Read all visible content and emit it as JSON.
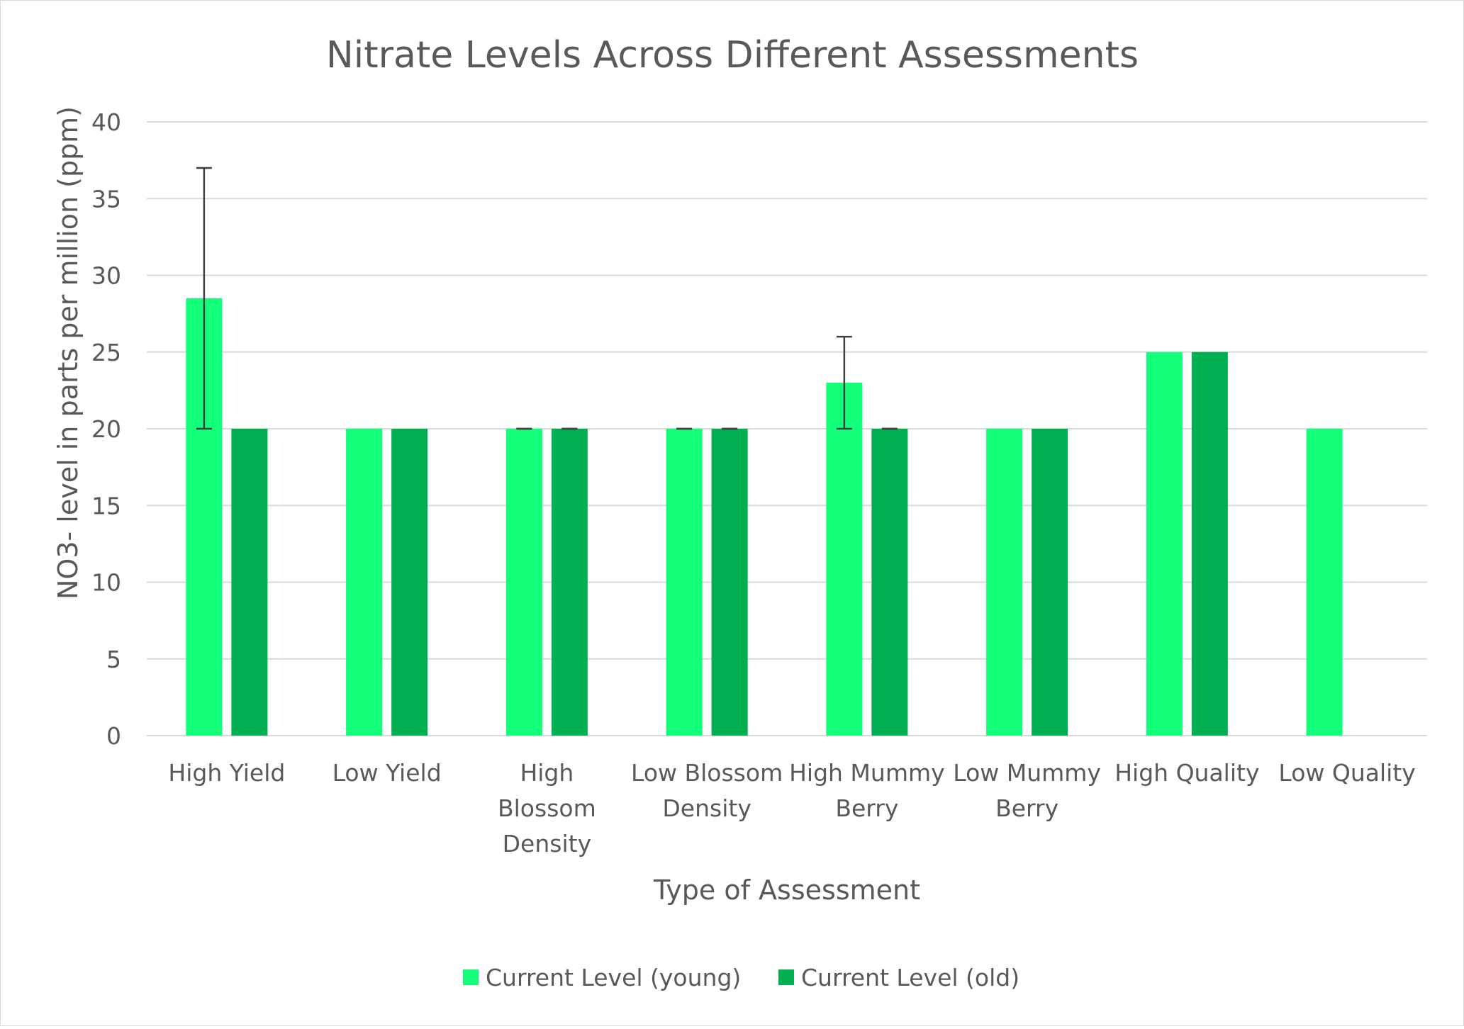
{
  "chart_data": {
    "type": "bar",
    "title": "Nitrate Levels Across Different Assessments",
    "xlabel": "Type of Assessment",
    "ylabel": "NO3- level in parts per million (ppm)",
    "ylim": [
      0,
      40
    ],
    "yticks": [
      0,
      5,
      10,
      15,
      20,
      25,
      30,
      35,
      40
    ],
    "grid": true,
    "legend_position": "bottom",
    "categories": [
      [
        "High Yield"
      ],
      [
        "Low Yield"
      ],
      [
        "High",
        "Blossom",
        "Density"
      ],
      [
        "Low Blossom",
        "Density"
      ],
      [
        "High Mummy",
        "Berry"
      ],
      [
        "Low Mummy",
        "Berry"
      ],
      [
        "High Quality"
      ],
      [
        "Low Quality"
      ]
    ],
    "series": [
      {
        "name": "Current Level (young)",
        "color": "#12FF7A",
        "values": [
          28.5,
          20,
          20,
          20,
          23,
          20,
          25,
          20
        ],
        "error_low": [
          20,
          null,
          20,
          20,
          20,
          null,
          null,
          null
        ],
        "error_high": [
          37,
          null,
          20,
          20,
          26,
          null,
          null,
          null
        ]
      },
      {
        "name": "Current Level (old)",
        "color": "#00B050",
        "values": [
          20,
          20,
          20,
          20,
          20,
          20,
          25,
          null
        ],
        "error_low": [
          null,
          null,
          20,
          20,
          20,
          null,
          null,
          null
        ],
        "error_high": [
          null,
          null,
          20,
          20,
          20,
          null,
          null,
          null
        ]
      }
    ],
    "colors": {
      "grid": "#d9d9d9",
      "text": "#595959",
      "error_bar": "#404040"
    }
  }
}
